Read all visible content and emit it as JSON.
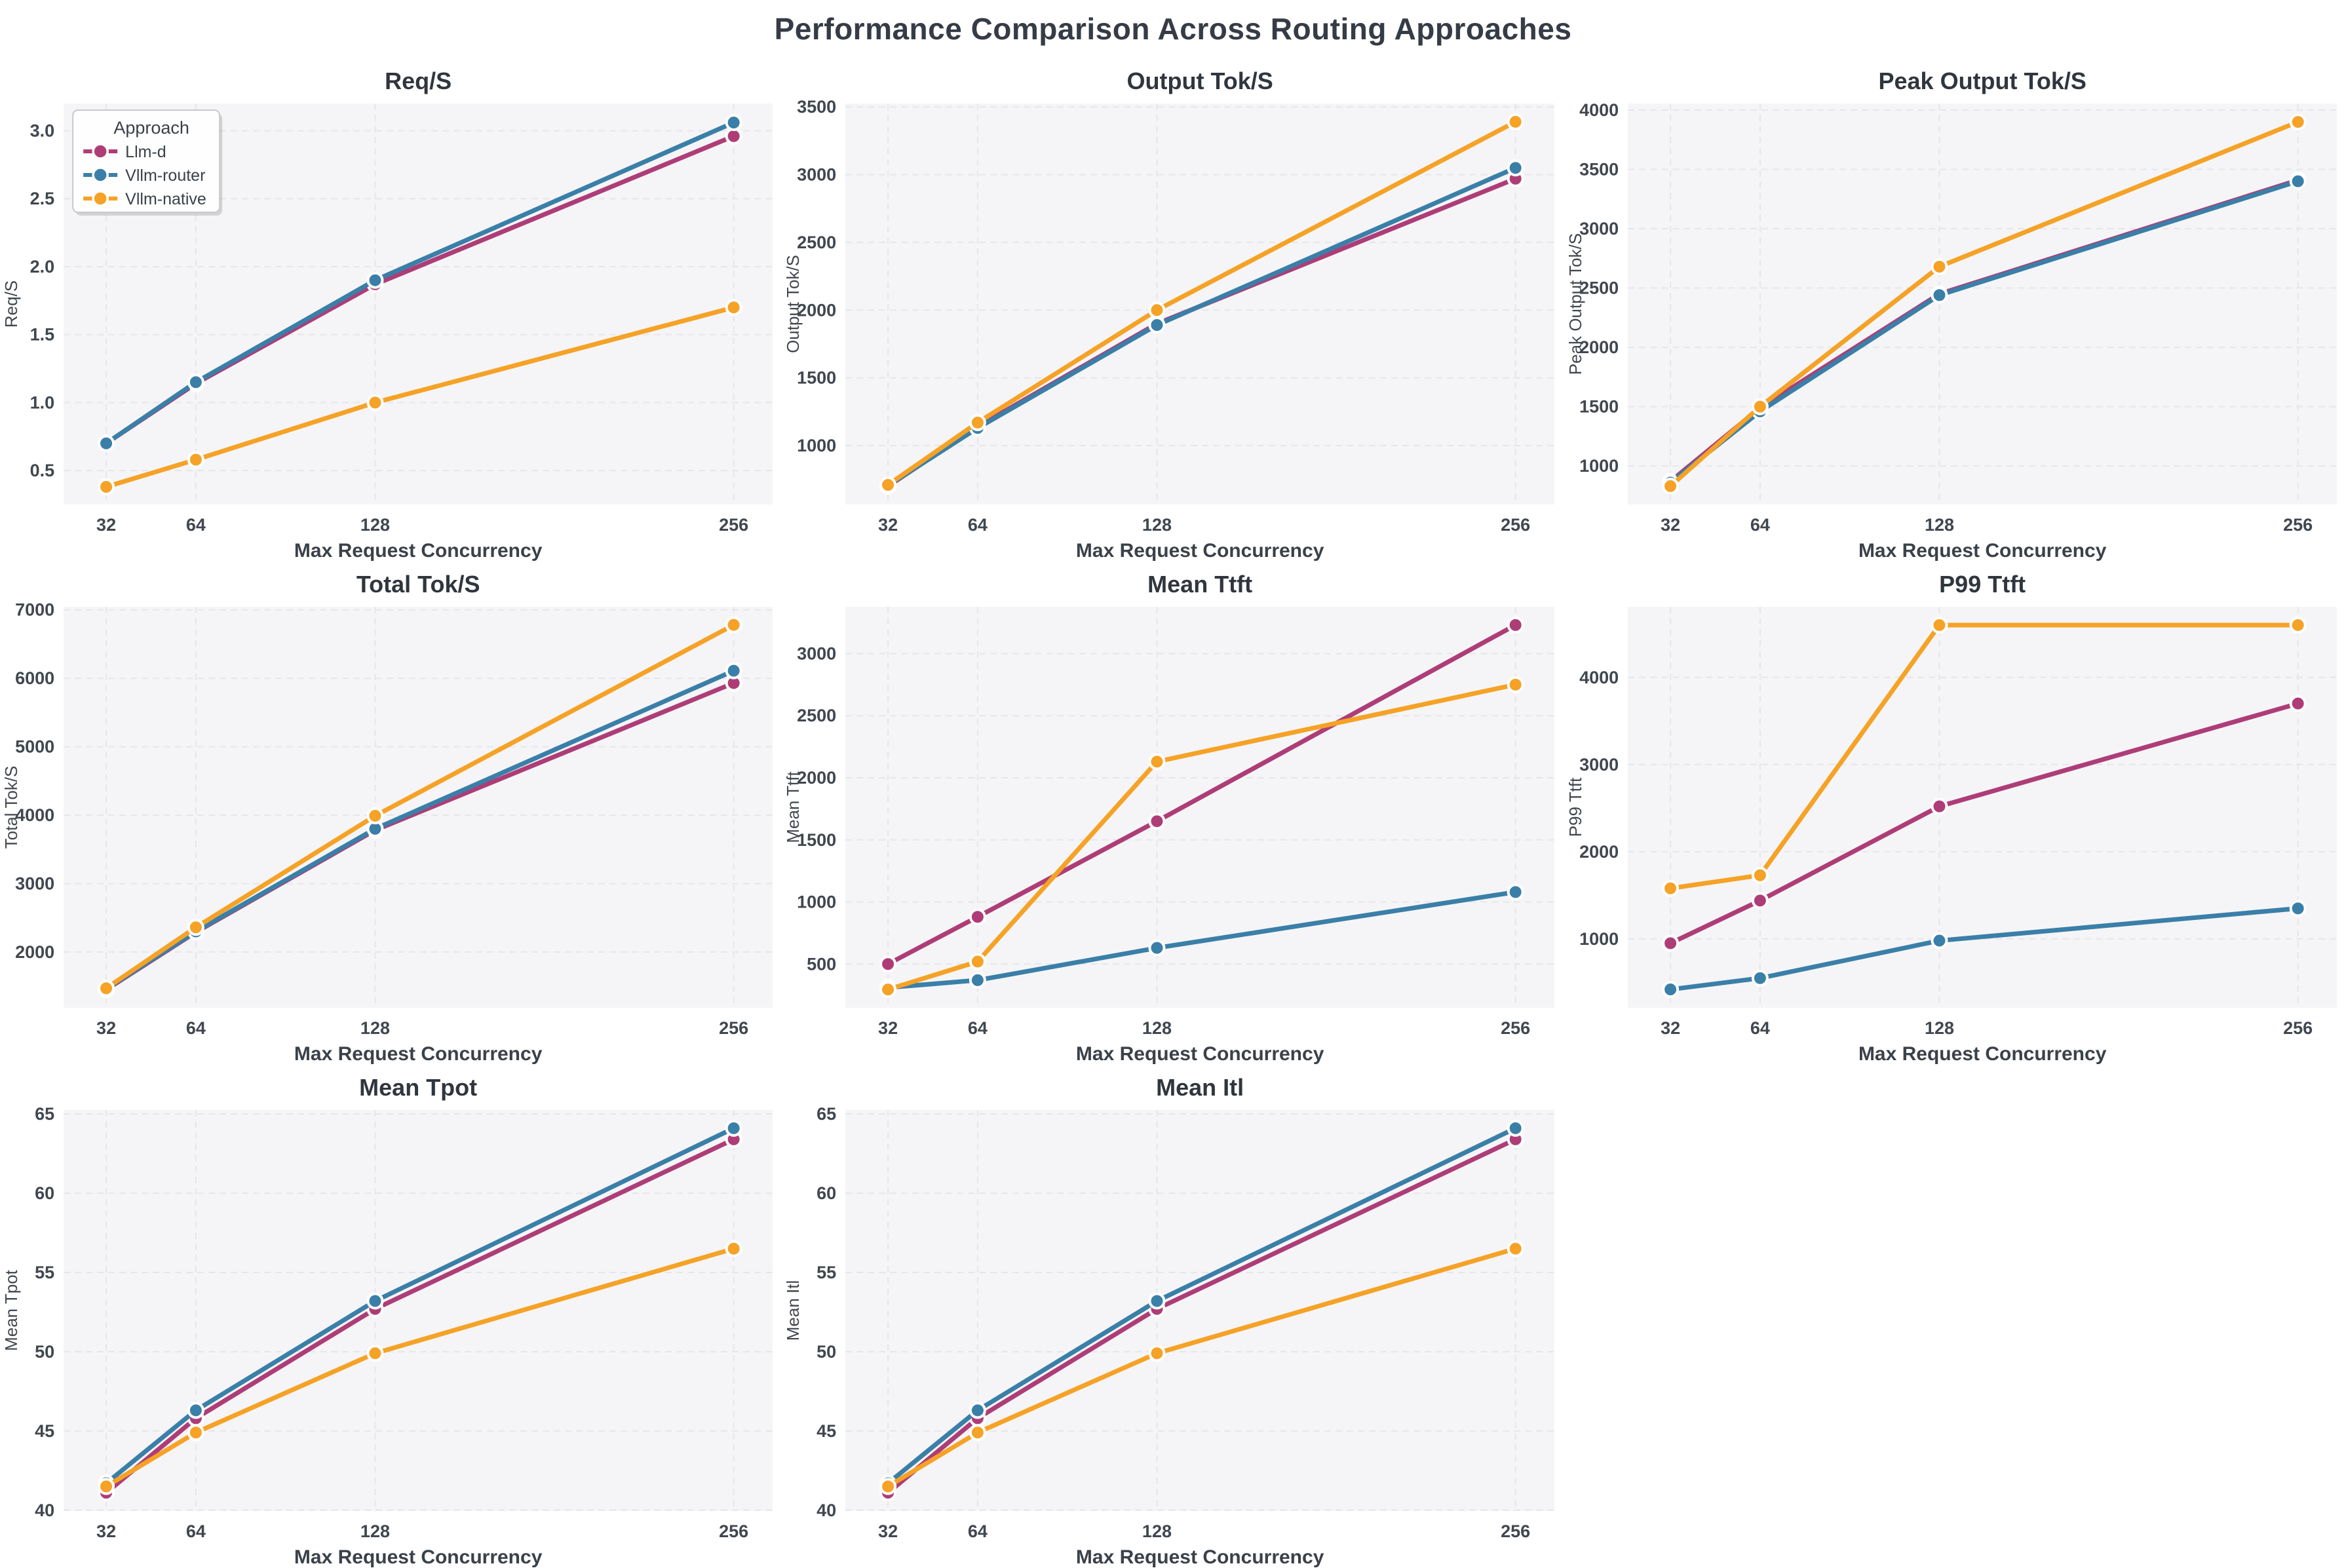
{
  "page_title": "Performance Comparison Across Routing Approaches",
  "colors": {
    "llm_d": "#ae3d77",
    "vllm_router": "#3a7fa8",
    "vllm_native": "#f5a226",
    "axes_bg": "#f5f5f7",
    "grid_line": "#e6e6ea",
    "title_text": "#30363e",
    "tick_text": "#40474f",
    "label_text": "#3a4149"
  },
  "legend": {
    "title": "Approach",
    "entries": [
      {
        "label": "Llm-d",
        "color_key": "llm_d"
      },
      {
        "label": "Vllm-router",
        "color_key": "vllm_router"
      },
      {
        "label": "Vllm-native",
        "color_key": "vllm_native"
      }
    ]
  },
  "chart_data": [
    {
      "type": "line",
      "title": "Req/S",
      "ylabel": "Req/S",
      "xlabel": "Max Request Concurrency",
      "x": [
        32,
        64,
        128,
        256
      ],
      "xtick_labels": [
        "32",
        "64",
        "128",
        "256"
      ],
      "ylim": [
        0.25,
        3.2
      ],
      "yticks": [
        0.5,
        1.0,
        1.5,
        2.0,
        2.5,
        3.0
      ],
      "ytick_labels": [
        "0.5",
        "1.0",
        "1.5",
        "2.0",
        "2.5",
        "3.0"
      ],
      "grid": true,
      "legend": true,
      "legend_position": "upper-left",
      "series": [
        {
          "name": "Llm-d",
          "color_key": "llm_d",
          "values": [
            0.7,
            1.14,
            1.87,
            2.96
          ]
        },
        {
          "name": "Vllm-router",
          "color_key": "vllm_router",
          "values": [
            0.7,
            1.15,
            1.9,
            3.06
          ]
        },
        {
          "name": "Vllm-native",
          "color_key": "vllm_native",
          "values": [
            0.38,
            0.58,
            1.0,
            1.7
          ]
        }
      ]
    },
    {
      "type": "line",
      "title": "Output Tok/S",
      "ylabel": "Output Tok/S",
      "xlabel": "Max Request Concurrency",
      "x": [
        32,
        64,
        128,
        256
      ],
      "xtick_labels": [
        "32",
        "64",
        "128",
        "256"
      ],
      "ylim": [
        565,
        3525
      ],
      "yticks": [
        1000,
        1500,
        2000,
        2500,
        3000,
        3500
      ],
      "ytick_labels": [
        "1000",
        "1500",
        "2000",
        "2500",
        "3000",
        "3500"
      ],
      "grid": true,
      "legend": false,
      "series": [
        {
          "name": "Llm-d",
          "color_key": "llm_d",
          "values": [
            700,
            1140,
            1900,
            2970
          ]
        },
        {
          "name": "Vllm-router",
          "color_key": "vllm_router",
          "values": [
            705,
            1130,
            1890,
            3050
          ]
        },
        {
          "name": "Vllm-native",
          "color_key": "vllm_native",
          "values": [
            710,
            1170,
            2000,
            3390
          ]
        }
      ]
    },
    {
      "type": "line",
      "title": "Peak Output Tok/S",
      "ylabel": "Peak Output Tok/S",
      "xlabel": "Max Request Concurrency",
      "x": [
        32,
        64,
        128,
        256
      ],
      "xtick_labels": [
        "32",
        "64",
        "128",
        "256"
      ],
      "ylim": [
        675,
        4055
      ],
      "yticks": [
        1000,
        1500,
        2000,
        2500,
        3000,
        3500,
        4000
      ],
      "ytick_labels": [
        "1000",
        "1500",
        "2000",
        "2500",
        "3000",
        "3500",
        "4000"
      ],
      "grid": true,
      "legend": false,
      "series": [
        {
          "name": "Llm-d",
          "color_key": "llm_d",
          "values": [
            870,
            1490,
            2450,
            3410
          ]
        },
        {
          "name": "Vllm-router",
          "color_key": "vllm_router",
          "values": [
            860,
            1460,
            2440,
            3400
          ]
        },
        {
          "name": "Vllm-native",
          "color_key": "vllm_native",
          "values": [
            830,
            1500,
            2680,
            3900
          ]
        }
      ]
    },
    {
      "type": "line",
      "title": "Total Tok/S",
      "ylabel": "Total Tok/S",
      "xlabel": "Max Request Concurrency",
      "x": [
        32,
        64,
        128,
        256
      ],
      "xtick_labels": [
        "32",
        "64",
        "128",
        "256"
      ],
      "ylim": [
        1185,
        7045
      ],
      "yticks": [
        2000,
        3000,
        4000,
        5000,
        6000,
        7000
      ],
      "ytick_labels": [
        "2000",
        "3000",
        "4000",
        "5000",
        "6000",
        "7000"
      ],
      "grid": true,
      "legend": false,
      "series": [
        {
          "name": "Llm-d",
          "color_key": "llm_d",
          "values": [
            1450,
            2290,
            3780,
            5930
          ]
        },
        {
          "name": "Vllm-router",
          "color_key": "vllm_router",
          "values": [
            1460,
            2300,
            3800,
            6110
          ]
        },
        {
          "name": "Vllm-native",
          "color_key": "vllm_native",
          "values": [
            1470,
            2360,
            3990,
            6780
          ]
        }
      ]
    },
    {
      "type": "line",
      "title": "Mean Ttft",
      "ylabel": "Mean Ttft",
      "xlabel": "Max Request Concurrency",
      "x": [
        32,
        64,
        128,
        256
      ],
      "xtick_labels": [
        "32",
        "64",
        "128",
        "256"
      ],
      "ylim": [
        148,
        3377
      ],
      "yticks": [
        500,
        1000,
        1500,
        2000,
        2500,
        3000
      ],
      "ytick_labels": [
        "500",
        "1000",
        "1500",
        "2000",
        "2500",
        "3000"
      ],
      "grid": true,
      "legend": false,
      "series": [
        {
          "name": "Llm-d",
          "color_key": "llm_d",
          "values": [
            500,
            880,
            1650,
            3230
          ]
        },
        {
          "name": "Vllm-router",
          "color_key": "vllm_router",
          "values": [
            310,
            370,
            630,
            1080
          ]
        },
        {
          "name": "Vllm-native",
          "color_key": "vllm_native",
          "values": [
            295,
            520,
            2130,
            2750
          ]
        }
      ]
    },
    {
      "type": "line",
      "title": "P99 Ttft",
      "ylabel": "P99 Ttft",
      "xlabel": "Max Request Concurrency",
      "x": [
        32,
        64,
        128,
        256
      ],
      "xtick_labels": [
        "32",
        "64",
        "128",
        "256"
      ],
      "ylim": [
        210,
        4810
      ],
      "yticks": [
        1000,
        2000,
        3000,
        4000
      ],
      "ytick_labels": [
        "1000",
        "2000",
        "3000",
        "4000"
      ],
      "grid": true,
      "legend": false,
      "series": [
        {
          "name": "Llm-d",
          "color_key": "llm_d",
          "values": [
            950,
            1440,
            2520,
            3700
          ]
        },
        {
          "name": "Vllm-router",
          "color_key": "vllm_router",
          "values": [
            420,
            550,
            980,
            1350
          ]
        },
        {
          "name": "Vllm-native",
          "color_key": "vllm_native",
          "values": [
            1580,
            1730,
            4600,
            4600
          ]
        }
      ]
    },
    {
      "type": "line",
      "title": "Mean Tpot",
      "ylabel": "Mean Tpot",
      "xlabel": "Max Request Concurrency",
      "x": [
        32,
        64,
        128,
        256
      ],
      "xtick_labels": [
        "32",
        "64",
        "128",
        "256"
      ],
      "ylim": [
        39.95,
        65.25
      ],
      "yticks": [
        40,
        45,
        50,
        55,
        60,
        65
      ],
      "ytick_labels": [
        "40",
        "45",
        "50",
        "55",
        "60",
        "65"
      ],
      "grid": true,
      "legend": false,
      "series": [
        {
          "name": "Llm-d",
          "color_key": "llm_d",
          "values": [
            41.1,
            45.8,
            52.7,
            63.4
          ]
        },
        {
          "name": "Vllm-router",
          "color_key": "vllm_router",
          "values": [
            41.7,
            46.3,
            53.2,
            64.1
          ]
        },
        {
          "name": "Vllm-native",
          "color_key": "vllm_native",
          "values": [
            41.5,
            44.9,
            49.9,
            56.5
          ]
        }
      ]
    },
    {
      "type": "line",
      "title": "Mean Itl",
      "ylabel": "Mean Itl",
      "xlabel": "Max Request Concurrency",
      "x": [
        32,
        64,
        128,
        256
      ],
      "xtick_labels": [
        "32",
        "64",
        "128",
        "256"
      ],
      "ylim": [
        39.95,
        65.25
      ],
      "yticks": [
        40,
        45,
        50,
        55,
        60,
        65
      ],
      "ytick_labels": [
        "40",
        "45",
        "50",
        "55",
        "60",
        "65"
      ],
      "grid": true,
      "legend": false,
      "series": [
        {
          "name": "Llm-d",
          "color_key": "llm_d",
          "values": [
            41.1,
            45.8,
            52.7,
            63.4
          ]
        },
        {
          "name": "Vllm-router",
          "color_key": "vllm_router",
          "values": [
            41.7,
            46.3,
            53.2,
            64.1
          ]
        },
        {
          "name": "Vllm-native",
          "color_key": "vllm_native",
          "values": [
            41.5,
            44.9,
            49.9,
            56.5
          ]
        }
      ]
    }
  ]
}
